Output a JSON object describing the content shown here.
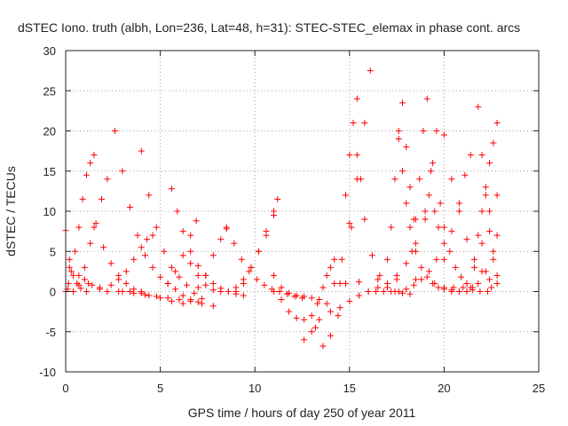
{
  "chart_data": {
    "type": "scatter",
    "title": "dSTEC Iono. truth (albh, Lon=236, Lat=48, h=31): STEC-STEC_elemax in phase cont. arcs",
    "xlabel": "GPS time / hours of day 250 of year 2011",
    "ylabel": "dSTEC / TECUs",
    "xlim": [
      0,
      25
    ],
    "ylim": [
      -10,
      30
    ],
    "xticks": [
      0,
      5,
      10,
      15,
      20,
      25
    ],
    "yticks": [
      -10,
      -5,
      0,
      5,
      10,
      15,
      20,
      25,
      30
    ],
    "grid": true,
    "marker": "plus",
    "color": "#ff0000",
    "series": [
      {
        "x": [
          0.0,
          0.2,
          0.4,
          0.6,
          0.8,
          1.1
        ],
        "y": [
          7.6,
          4.0,
          2.0,
          1.0,
          0.4,
          0.0
        ]
      },
      {
        "x": [
          0.0,
          0.15,
          0.3,
          0.5,
          0.7,
          0.9,
          1.1,
          1.3,
          1.5
        ],
        "y": [
          0.0,
          1.0,
          2.5,
          5.0,
          8.0,
          11.5,
          14.5,
          16.0,
          17.0
        ]
      },
      {
        "x": [
          0.1,
          0.4,
          0.7,
          1.0,
          1.3,
          1.6,
          1.9,
          2.2
        ],
        "y": [
          0.3,
          0.0,
          0.8,
          3.0,
          6.0,
          8.5,
          11.5,
          14.0
        ]
      },
      {
        "x": [
          1.5,
          2.0,
          2.4,
          2.8,
          3.2,
          3.6,
          4.0,
          4.4,
          5.0,
          5.6,
          6.2
        ],
        "y": [
          8.0,
          5.5,
          3.5,
          2.0,
          1.0,
          0.3,
          -0.2,
          -0.5,
          -0.8,
          -1.2,
          -1.5
        ]
      },
      {
        "x": [
          0.2,
          0.7,
          1.2,
          1.8,
          2.4,
          2.8,
          3.2,
          3.6,
          4.0,
          4.3,
          4.6
        ],
        "y": [
          3.0,
          2.0,
          1.0,
          0.5,
          0.8,
          1.5,
          2.5,
          4.0,
          5.5,
          6.5,
          7.0
        ]
      },
      {
        "x": [
          1.0,
          1.4,
          1.8,
          2.2,
          2.8,
          3.4,
          4.0
        ],
        "y": [
          1.5,
          0.8,
          0.3,
          0.0,
          0.0,
          0.0,
          0.0
        ]
      },
      {
        "x": [
          2.6,
          3.0,
          3.4,
          3.8,
          4.2,
          4.6,
          5.0,
          5.4,
          5.8,
          6.2,
          6.6,
          7.0
        ],
        "y": [
          20.0,
          15.0,
          10.5,
          7.0,
          4.5,
          3.0,
          1.8,
          1.0,
          0.3,
          -0.5,
          -1.0,
          -1.3
        ]
      },
      {
        "x": [
          4.0,
          4.4,
          4.8,
          5.2,
          5.6,
          6.0,
          6.4,
          6.8,
          7.2
        ],
        "y": [
          17.5,
          12.0,
          8.0,
          5.0,
          3.0,
          1.8,
          0.8,
          -0.2,
          -0.9
        ]
      },
      {
        "x": [
          3.0,
          3.6,
          4.2,
          4.8,
          5.4,
          6.0,
          6.6,
          7.2,
          7.8
        ],
        "y": [
          0.0,
          -0.2,
          -0.4,
          -0.6,
          -0.8,
          -1.0,
          -1.2,
          -1.5,
          -1.8
        ]
      },
      {
        "x": [
          5.6,
          5.9,
          6.2,
          6.6,
          7.0,
          7.4,
          7.8,
          8.2,
          8.6,
          9.0,
          9.4
        ],
        "y": [
          12.8,
          10.0,
          7.5,
          5.0,
          3.2,
          2.0,
          1.0,
          0.4,
          0.0,
          -0.3,
          -0.5
        ]
      },
      {
        "x": [
          5.4,
          5.8,
          6.2,
          6.6,
          6.9
        ],
        "y": [
          1.0,
          2.5,
          4.5,
          7.0,
          8.8
        ]
      },
      {
        "x": [
          6.6,
          7.0,
          7.4,
          7.8,
          8.2,
          8.6,
          9.0,
          9.4,
          9.8,
          10.2,
          10.6,
          11.0
        ],
        "y": [
          3.5,
          2.0,
          0.8,
          0.2,
          0.0,
          0.0,
          0.5,
          1.5,
          3.0,
          5.0,
          7.5,
          10.0
        ]
      },
      {
        "x": [
          7.0,
          7.4,
          7.8,
          8.2,
          8.5
        ],
        "y": [
          0.5,
          2.0,
          4.5,
          6.5,
          8.0
        ]
      },
      {
        "x": [
          8.5,
          8.9,
          9.3,
          9.7,
          10.1,
          10.5,
          10.9,
          11.3,
          11.7,
          12.1,
          12.5
        ],
        "y": [
          7.8,
          6.0,
          4.0,
          2.5,
          1.5,
          0.8,
          0.3,
          0.0,
          -0.3,
          -0.6,
          -0.8
        ]
      },
      {
        "x": [
          9.0,
          9.4,
          9.8,
          10.2,
          10.6,
          11.0,
          11.2
        ],
        "y": [
          0.0,
          1.0,
          3.0,
          5.0,
          7.0,
          9.5,
          11.5
        ]
      },
      {
        "x": [
          11.0,
          11.4,
          11.8,
          12.2,
          12.6,
          13.0,
          13.4
        ],
        "y": [
          2.0,
          0.5,
          -0.2,
          -0.5,
          -0.6,
          -0.8,
          -1.0
        ]
      },
      {
        "x": [
          11.0,
          11.4,
          11.8,
          12.2,
          12.6,
          13.0,
          13.3,
          13.6,
          13.8,
          14.0,
          14.2
        ],
        "y": [
          0.0,
          -1.0,
          -2.5,
          -3.3,
          -3.5,
          -3.0,
          -1.5,
          0.5,
          2.0,
          3.0,
          4.0
        ]
      },
      {
        "x": [
          12.6,
          13.0,
          13.4,
          13.8,
          14.2,
          14.6,
          15.0,
          15.4,
          15.8,
          16.1
        ],
        "y": [
          -6.0,
          -5.0,
          -3.5,
          -1.5,
          1.0,
          4.0,
          8.5,
          14.0,
          21.0,
          27.5
        ]
      },
      {
        "x": [
          13.2,
          13.6,
          14.0,
          14.4,
          14.8,
          15.1,
          15.4
        ],
        "y": [
          -4.5,
          -6.8,
          -5.5,
          -3.0,
          1.0,
          8.0,
          17.0
        ]
      },
      {
        "x": [
          14.0,
          14.5,
          15.0,
          15.5,
          16.0,
          16.5,
          17.0,
          17.5,
          18.0,
          18.5,
          19.0
        ],
        "y": [
          -2.5,
          -2.0,
          -1.2,
          -0.5,
          0.0,
          0.5,
          1.0,
          2.0,
          3.5,
          6.0,
          10.0
        ]
      },
      {
        "x": [
          14.8,
          15.0,
          15.2,
          15.4,
          15.6,
          15.8,
          16.2,
          16.6,
          17.0,
          17.4,
          17.8,
          18.2
        ],
        "y": [
          12.0,
          17.0,
          21.0,
          24.0,
          14.0,
          9.0,
          4.5,
          2.0,
          0.5,
          0.0,
          -0.2,
          -0.3
        ]
      },
      {
        "x": [
          16.0,
          16.4,
          16.8,
          17.2,
          17.6,
          18.0,
          18.4,
          18.8,
          19.2,
          19.6,
          20.0
        ],
        "y": [
          0.0,
          0.0,
          0.0,
          0.0,
          0.0,
          0.3,
          0.8,
          1.5,
          2.5,
          4.0,
          6.0
        ]
      },
      {
        "x": [
          17.0,
          17.2,
          17.4,
          17.6,
          17.8,
          18.0,
          18.2,
          18.4
        ],
        "y": [
          4.0,
          8.0,
          14.0,
          20.0,
          23.5,
          18.0,
          13.0,
          9.0
        ]
      },
      {
        "x": [
          17.6,
          17.8,
          18.0,
          18.2,
          18.5,
          18.8,
          19.1,
          19.4,
          19.7,
          20.0,
          20.4,
          20.8,
          21.2
        ],
        "y": [
          19.0,
          15.0,
          11.0,
          8.0,
          5.0,
          3.0,
          1.8,
          1.0,
          0.5,
          0.3,
          0.2,
          0.0,
          0.0
        ]
      },
      {
        "x": [
          18.3,
          18.5,
          18.7,
          18.9,
          19.1,
          19.3,
          19.5,
          19.7
        ],
        "y": [
          5.0,
          9.0,
          14.0,
          20.0,
          24.0,
          15.0,
          10.0,
          8.0
        ]
      },
      {
        "x": [
          19.0,
          19.2,
          19.4,
          19.6,
          19.8,
          20.0,
          20.3,
          20.6,
          20.9,
          21.2,
          21.5,
          21.9,
          22.3
        ],
        "y": [
          9.0,
          12.0,
          16.0,
          20.0,
          11.0,
          8.0,
          5.0,
          3.0,
          1.8,
          1.0,
          0.5,
          0.0,
          0.0
        ]
      },
      {
        "x": [
          20.0,
          20.4,
          20.8,
          21.2,
          21.6,
          22.0,
          22.4,
          22.8
        ],
        "y": [
          19.5,
          14.0,
          10.0,
          6.5,
          4.0,
          2.5,
          1.5,
          1.0
        ]
      },
      {
        "x": [
          20.0,
          20.4,
          20.8,
          21.1,
          21.4
        ],
        "y": [
          4.0,
          7.5,
          11.0,
          14.5,
          17.0
        ]
      },
      {
        "x": [
          20.0,
          20.4,
          20.8,
          21.2,
          21.6,
          22.0,
          22.4,
          22.8
        ],
        "y": [
          0.5,
          0.0,
          0.0,
          1.0,
          3.0,
          6.0,
          10.0,
          12.0
        ]
      },
      {
        "x": [
          21.8,
          22.0,
          22.2,
          22.4,
          22.6,
          22.8
        ],
        "y": [
          7.0,
          10.0,
          13.0,
          16.0,
          18.5,
          21.0
        ]
      },
      {
        "x": [
          21.0,
          21.4,
          21.8,
          22.2,
          22.6,
          22.8
        ],
        "y": [
          0.5,
          0.5,
          1.0,
          2.5,
          5.0,
          7.0
        ]
      },
      {
        "x": [
          21.8,
          22.0,
          22.2,
          22.4,
          22.6,
          22.8
        ],
        "y": [
          23.0,
          17.0,
          12.0,
          7.5,
          4.0,
          2.0
        ]
      },
      {
        "x": [
          14.5,
          15.5,
          16.5,
          17.5,
          18.5,
          19.5,
          20.5,
          21.5,
          22.5
        ],
        "y": [
          1.0,
          1.2,
          1.5,
          1.5,
          1.5,
          1.0,
          0.5,
          0.2,
          0.5
        ]
      }
    ]
  }
}
